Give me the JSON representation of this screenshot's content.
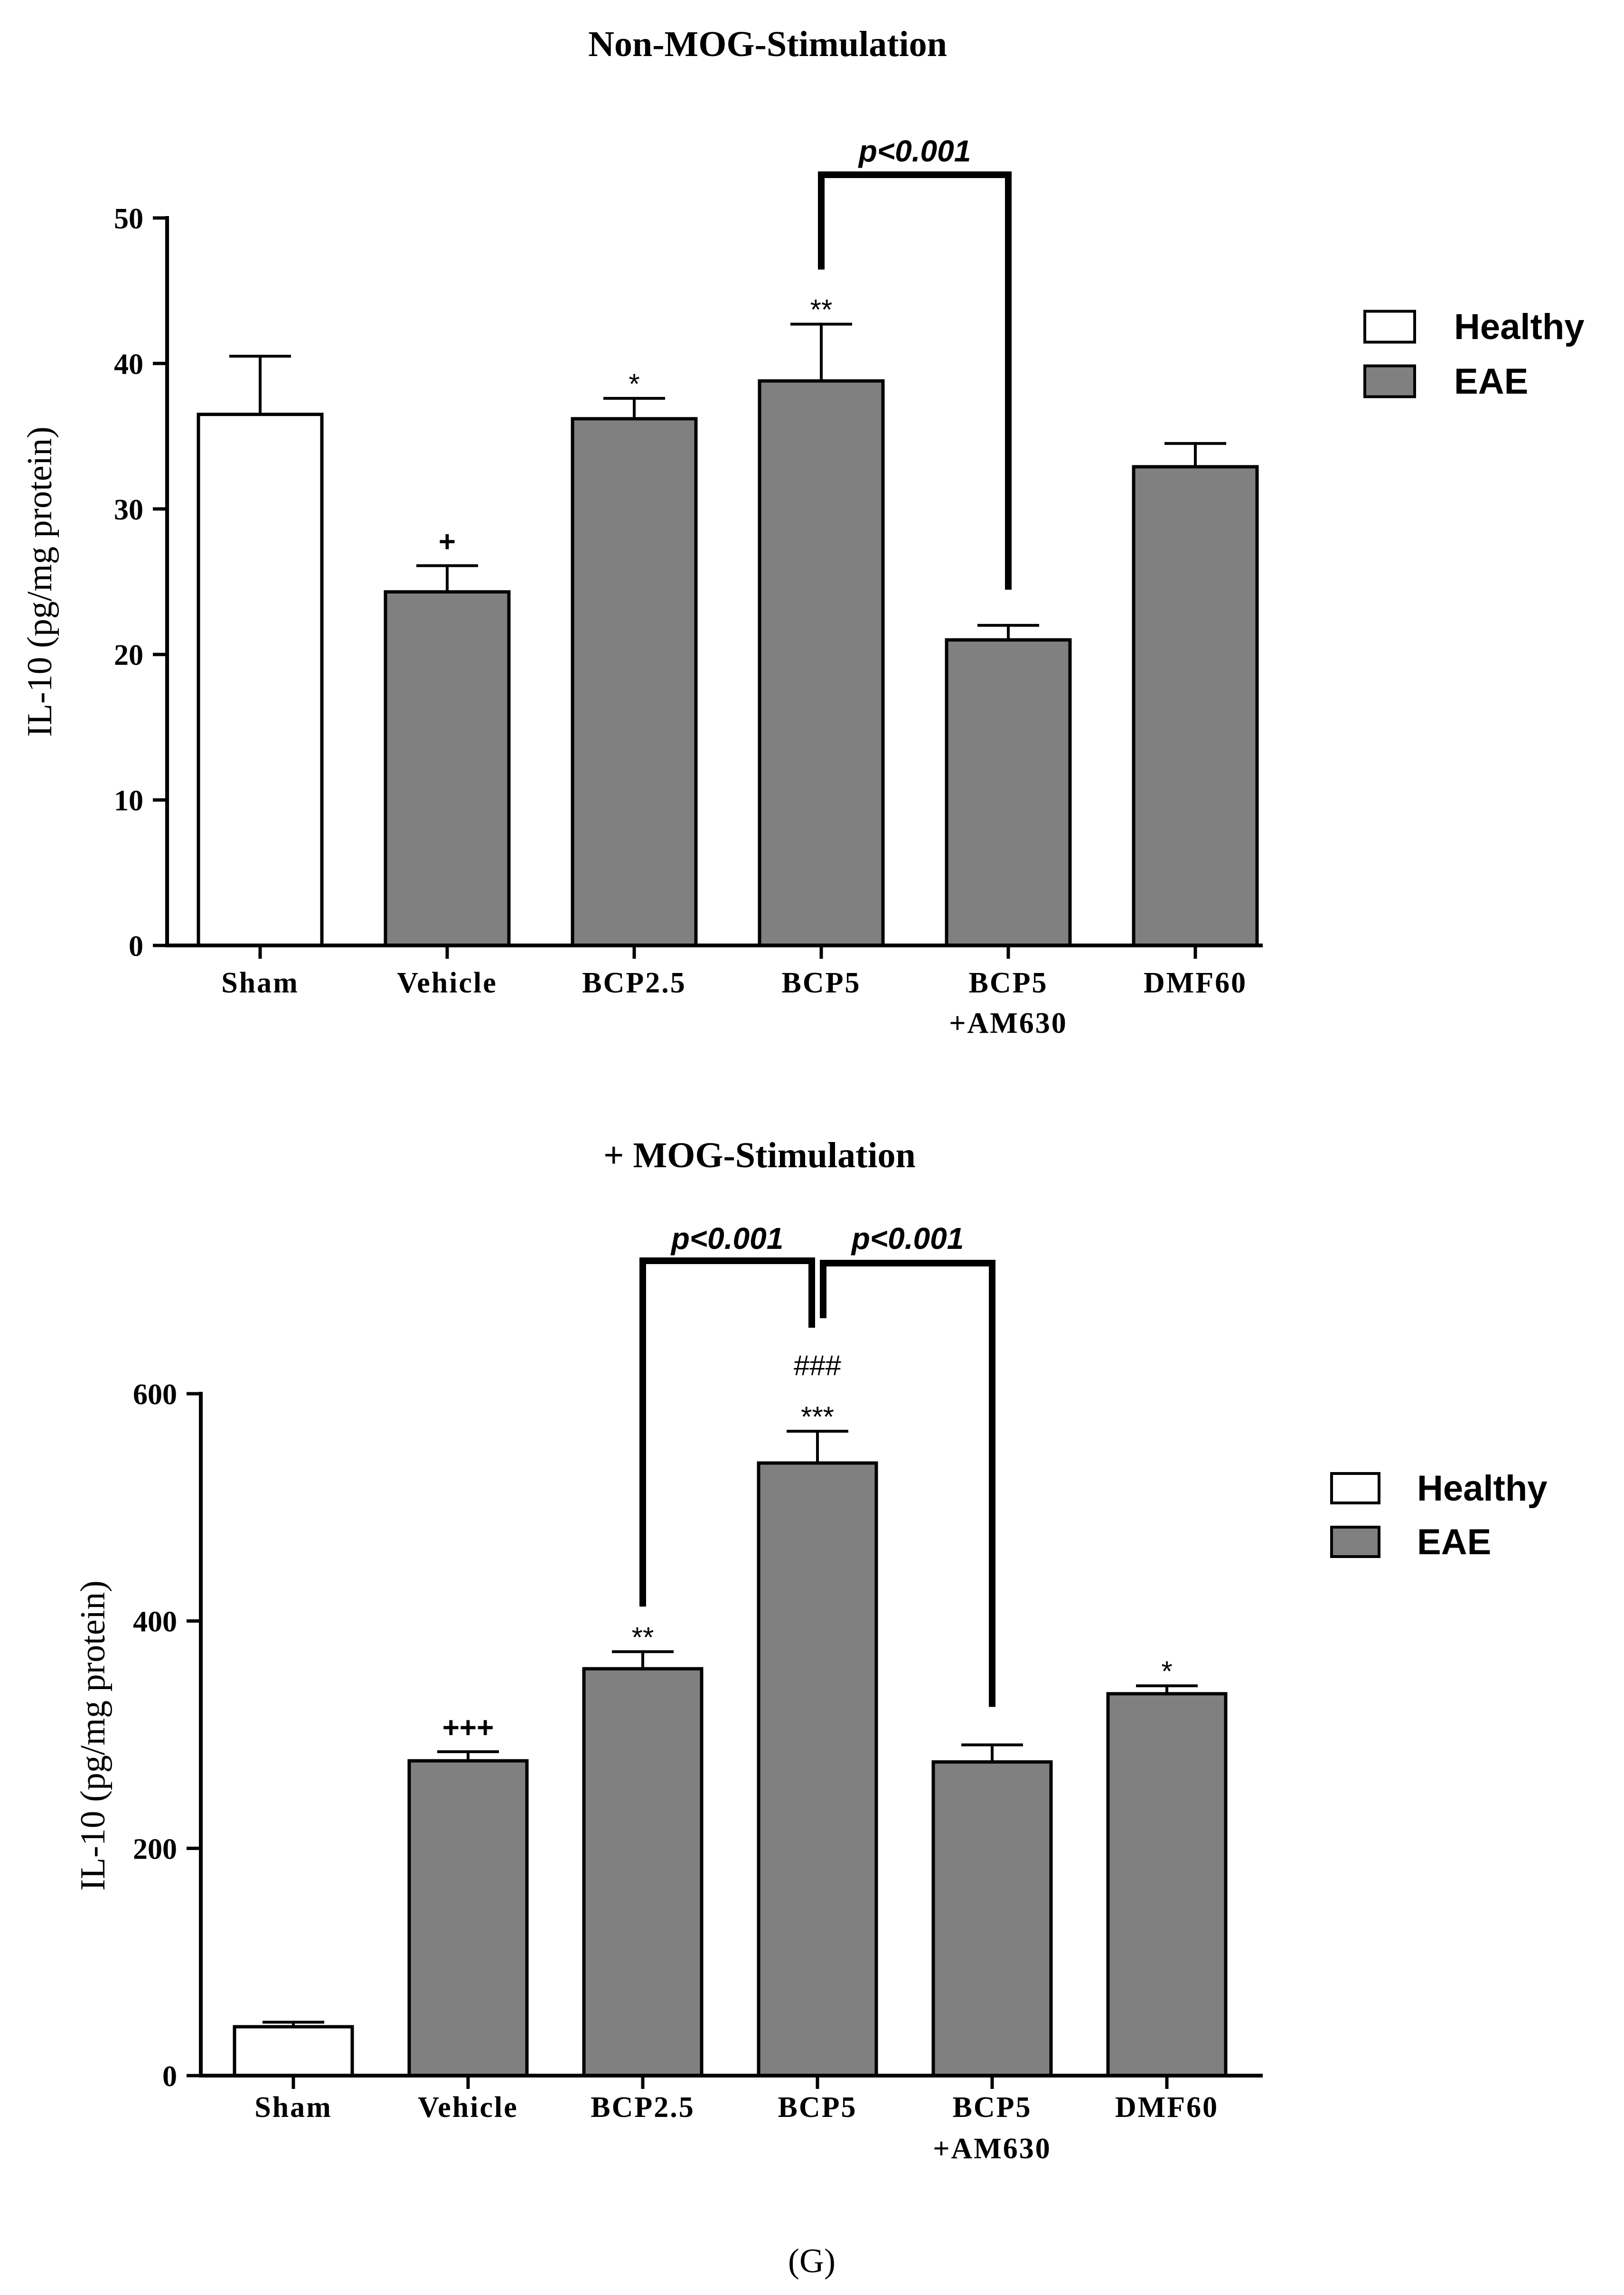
{
  "figure_label": "(G)",
  "colors": {
    "healthy_fill": "#ffffff",
    "eae_fill": "#808080",
    "stroke": "#000000"
  },
  "chart_data": [
    {
      "type": "bar",
      "title": "Non-MOG-Stimulation",
      "xlabel": "",
      "ylabel": "IL-10 (pg/mg protein)",
      "ylim": [
        0,
        50
      ],
      "yticks": [
        0,
        10,
        20,
        30,
        40,
        50
      ],
      "categories": [
        [
          "Sham"
        ],
        [
          "Vehicle"
        ],
        [
          "BCP2.5"
        ],
        [
          "BCP5"
        ],
        [
          "BCP5",
          "+AM630"
        ],
        [
          "DMF60"
        ]
      ],
      "values": [
        36.5,
        24.3,
        36.2,
        38.8,
        21.0,
        32.9
      ],
      "errors": [
        4.0,
        1.8,
        1.4,
        3.9,
        1.0,
        1.6
      ],
      "groups": [
        "Healthy",
        "EAE",
        "EAE",
        "EAE",
        "EAE",
        "EAE"
      ],
      "annotations": [
        "",
        "+",
        "*",
        "**",
        "",
        ""
      ],
      "annotations2": [
        "",
        "",
        "",
        "",
        "",
        ""
      ],
      "brackets": [
        {
          "from": 3,
          "to": 4,
          "label": "p<0.001"
        }
      ],
      "legend": [
        "Healthy",
        "EAE"
      ]
    },
    {
      "type": "bar",
      "title": "+ MOG-Stimulation",
      "xlabel": "",
      "ylabel": "IL-10 (pg/mg protein)",
      "ylim": [
        0,
        600
      ],
      "yticks": [
        0,
        200,
        400,
        600
      ],
      "categories": [
        [
          "Sham"
        ],
        [
          "Vehicle"
        ],
        [
          "BCP2.5"
        ],
        [
          "BCP5"
        ],
        [
          "BCP5",
          "+AM630"
        ],
        [
          "DMF60"
        ]
      ],
      "values": [
        43,
        277,
        358,
        539,
        276,
        336
      ],
      "errors": [
        4,
        8,
        15,
        28,
        15,
        7
      ],
      "groups": [
        "Healthy",
        "EAE",
        "EAE",
        "EAE",
        "EAE",
        "EAE"
      ],
      "annotations": [
        "",
        "+++",
        "**",
        "***",
        "",
        "*"
      ],
      "annotations2": [
        "",
        "",
        "",
        "###",
        "",
        ""
      ],
      "brackets": [
        {
          "from": 2,
          "to": 3,
          "label": "p<0.001"
        },
        {
          "from": 3,
          "to": 4,
          "label": "p<0.001"
        }
      ],
      "legend": [
        "Healthy",
        "EAE"
      ]
    }
  ]
}
